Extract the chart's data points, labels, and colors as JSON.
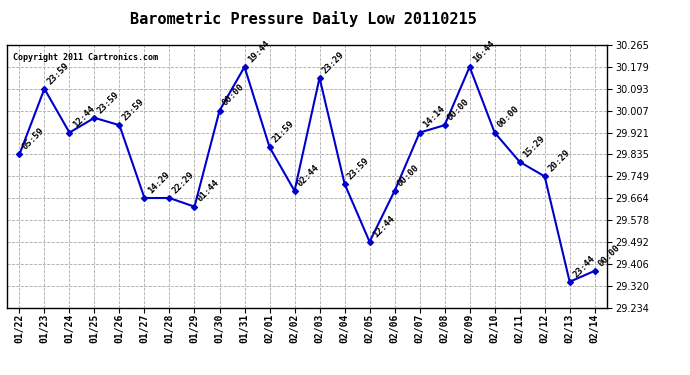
{
  "title": "Barometric Pressure Daily Low 20110215",
  "copyright": "Copyright 2011 Cartronics.com",
  "dates": [
    "01/22",
    "01/23",
    "01/24",
    "01/25",
    "01/26",
    "01/27",
    "01/28",
    "01/29",
    "01/30",
    "01/31",
    "02/01",
    "02/02",
    "02/03",
    "02/04",
    "02/05",
    "02/06",
    "02/07",
    "02/08",
    "02/09",
    "02/10",
    "02/11",
    "02/12",
    "02/13",
    "02/14"
  ],
  "values": [
    29.835,
    30.093,
    29.921,
    29.979,
    29.95,
    29.664,
    29.664,
    29.63,
    30.007,
    30.179,
    29.864,
    29.692,
    30.136,
    29.72,
    29.492,
    29.692,
    29.921,
    29.95,
    30.179,
    29.921,
    29.806,
    29.749,
    29.335,
    29.378
  ],
  "time_labels": [
    "05:59",
    "23:59",
    "12:44",
    "23:59",
    "23:59",
    "14:29",
    "22:29",
    "01:44",
    "00:00",
    "19:44",
    "21:59",
    "02:44",
    "23:29",
    "23:59",
    "12:44",
    "00:00",
    "14:14",
    "00:00",
    "16:44",
    "00:00",
    "15:29",
    "20:29",
    "23:44",
    "00:00"
  ],
  "ylim": [
    29.234,
    30.265
  ],
  "yticks": [
    29.234,
    29.32,
    29.406,
    29.492,
    29.578,
    29.664,
    29.749,
    29.835,
    29.921,
    30.007,
    30.093,
    30.179,
    30.265
  ],
  "line_color": "#0000cc",
  "marker_color": "#0000cc",
  "grid_color": "#aaaaaa",
  "bg_color": "#ffffff",
  "title_fontsize": 11,
  "tick_fontsize": 7,
  "annotation_fontsize": 6.5
}
